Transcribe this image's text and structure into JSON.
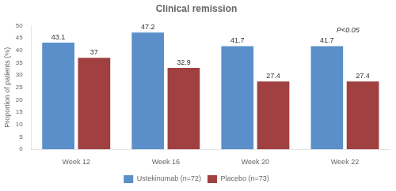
{
  "chart_data": {
    "type": "bar",
    "title": "Clinical remission",
    "ylabel": "Proportion of patients (%)",
    "categories": [
      "Week 12",
      "Week 16",
      "Week 20",
      "Week 22"
    ],
    "series": [
      {
        "name": "Ustekinumab (n=72)",
        "color": "#5b8fc9",
        "values": [
          43.1,
          47.2,
          41.7,
          41.7
        ]
      },
      {
        "name": "Placebo (n=73)",
        "color": "#a04040",
        "values": [
          37.0,
          32.9,
          27.4,
          27.4
        ]
      }
    ],
    "ylim": [
      0,
      50
    ],
    "yticks": [
      0,
      5,
      10,
      15,
      20,
      25,
      30,
      35,
      40,
      45,
      50
    ],
    "grid": false,
    "legend": "bottom",
    "data_labels": true,
    "annotations": [
      {
        "text": "P<0.05",
        "category": "Week 22"
      }
    ]
  }
}
